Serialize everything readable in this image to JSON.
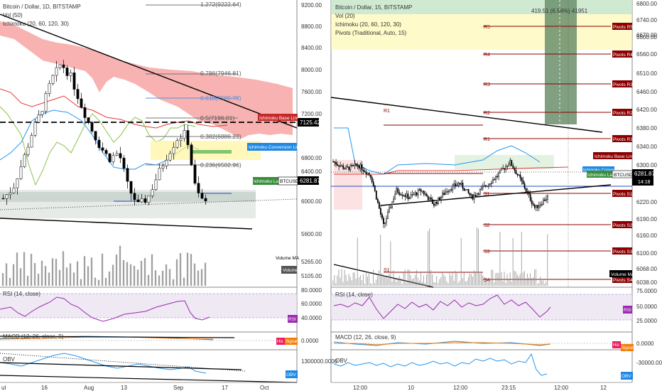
{
  "left": {
    "header": {
      "title": "Bitcoin / Dollar, 1D, BITSTAMP",
      "vol": "Vol (50)",
      "ichimoku": "Ichimoku (20, 60, 120, 30)"
    },
    "price_axis": [
      "9200.00",
      "8800.00",
      "8400.00",
      "8000.00",
      "7600.00",
      "7200.00",
      "6800.00",
      "6400.00",
      "6000.00",
      "5600.00",
      "5265.00",
      "5105.00"
    ],
    "fib_labels": [
      "1.272(9222.64)",
      "0.786(7946.81)",
      "0.618(7505.78)",
      "0.5(7196.01)",
      "0.382(6886.23)",
      "0.236(6502.96)"
    ],
    "price_tags": {
      "base_line": "Ichimoku Base Line",
      "base_value": "7125.42",
      "conv_line": "Ichimoku Conversion Line",
      "lag": "Ichimoku Lag",
      "symbol": "BTCUSD",
      "price": "6281.87"
    },
    "volume_ma": "Volume MA",
    "volume": "Volume",
    "rsi": {
      "label": "RSI (14, close)",
      "axis": [
        "80.0000",
        "60.0000",
        "40.0000"
      ],
      "tag": "RSI"
    },
    "macd": {
      "label": "MACD (12, 26, close, 9)",
      "axis": [
        "0.0000"
      ],
      "tag_his": "His",
      "tag_signal": "Signal"
    },
    "obv": {
      "label": "OBV",
      "axis": [
        "1300000.0000"
      ],
      "tag": "OBV"
    },
    "time_axis": [
      "ul",
      "16",
      "Aug",
      "13",
      "Sep",
      "17",
      "Oct"
    ]
  },
  "right": {
    "header": {
      "title": "Bitcoin / Dollar, 15, BITSTAMP",
      "vol": "Vol (20)",
      "ichimoku": "Ichimoku (20, 60, 120, 30)",
      "pivots": "Pivots (Traditional, Auto, 15)"
    },
    "measure": "419.51 (6.56%) 41951",
    "price_axis": [
      "6800.00",
      "6740.00",
      "6670.00",
      "6600.00",
      "6560.00",
      "6510.00",
      "6460.00",
      "6420.00",
      "6380.00",
      "6340.00",
      "6300.00",
      "6260.00",
      "6220.00",
      "6190.00",
      "6160.00",
      "6130.00",
      "6100.00",
      "6068.00",
      "6038.00"
    ],
    "pivot_levels": [
      "R5",
      "R4",
      "R3",
      "R2",
      "R1",
      "R2",
      "R1",
      "P",
      "S1",
      "S2",
      "S3",
      "S1",
      "S4"
    ],
    "pivot_tags": [
      "Pivots R5",
      "Pivots R4",
      "Pivots R3",
      "Pivots R2",
      "Pivots R1",
      "Pivots P",
      "Pivots S1",
      "Pivots S2",
      "Pivots S3",
      "Pivots S4"
    ],
    "price_tags": {
      "base_line": "Ichimoku Base Line",
      "conv_line": "Ichimoku Conversion Line",
      "lag": "Ichimoku Lag",
      "symbol": "BTCUSD",
      "price": "6281.87",
      "countdown": "14:18"
    },
    "volume_ma": "Volume MA",
    "volume": "Volume",
    "rsi": {
      "label": "RSI (14, close)",
      "axis": [
        "75.0000",
        "50.0000",
        "25.0000"
      ],
      "tag": "RSI"
    },
    "macd": {
      "label": "MACD (12, 26, close, 9)",
      "axis": [
        "0.0000"
      ],
      "tag_his": "His",
      "tag_signal": "Signal"
    },
    "obv": {
      "label": "OBV",
      "axis": [
        "-30000.0000"
      ],
      "tag": "OBV"
    },
    "time_axis": [
      "12:00",
      "10",
      "12:00",
      "23:15",
      "12:00",
      "12"
    ]
  },
  "colors": {
    "cloud": "#f7a5a5",
    "kijun": "#e53935",
    "tenkan": "#2196f3",
    "lag": "#8bc34a",
    "rsi": "#9c27b0",
    "pivot": "#8b0000",
    "up": "#ffffff",
    "down": "#000000",
    "tag_red": "#c62828",
    "tag_blue": "#1e88e5",
    "tag_green": "#388e3c",
    "tag_dark": "#8b0000"
  },
  "chart_data": [
    {
      "type": "candlestick",
      "title": "Bitcoin / Dollar, 1D, BITSTAMP",
      "ylim": [
        5000,
        9300
      ],
      "close_samples": [
        6350,
        6500,
        6900,
        7350,
        7700,
        8150,
        8400,
        8200,
        7800,
        7450,
        7150,
        6950,
        7050,
        6500,
        6250,
        6350,
        6700,
        7000,
        7250,
        7350,
        6450,
        6281.87
      ],
      "fib_levels": [
        9222.64,
        7946.81,
        7505.78,
        7196.01,
        6886.23,
        6502.96
      ],
      "last_price": 6281.87
    },
    {
      "type": "candlestick",
      "title": "Bitcoin / Dollar, 15, BITSTAMP",
      "ylim": [
        6030,
        6830
      ],
      "close_samples": [
        6380,
        6360,
        6370,
        6340,
        6200,
        6300,
        6280,
        6300,
        6260,
        6300,
        6320,
        6280,
        6310,
        6340,
        6380,
        6320,
        6250,
        6281.87
      ],
      "pivots": {
        "R5": 6625,
        "R4": 6560,
        "R3": 6480,
        "R2": 6425,
        "R1": 6365,
        "P": 6318,
        "S1": 6235,
        "S2": 6165,
        "S3": 6105,
        "S4": 6040
      },
      "last_price": 6281.87
    }
  ]
}
